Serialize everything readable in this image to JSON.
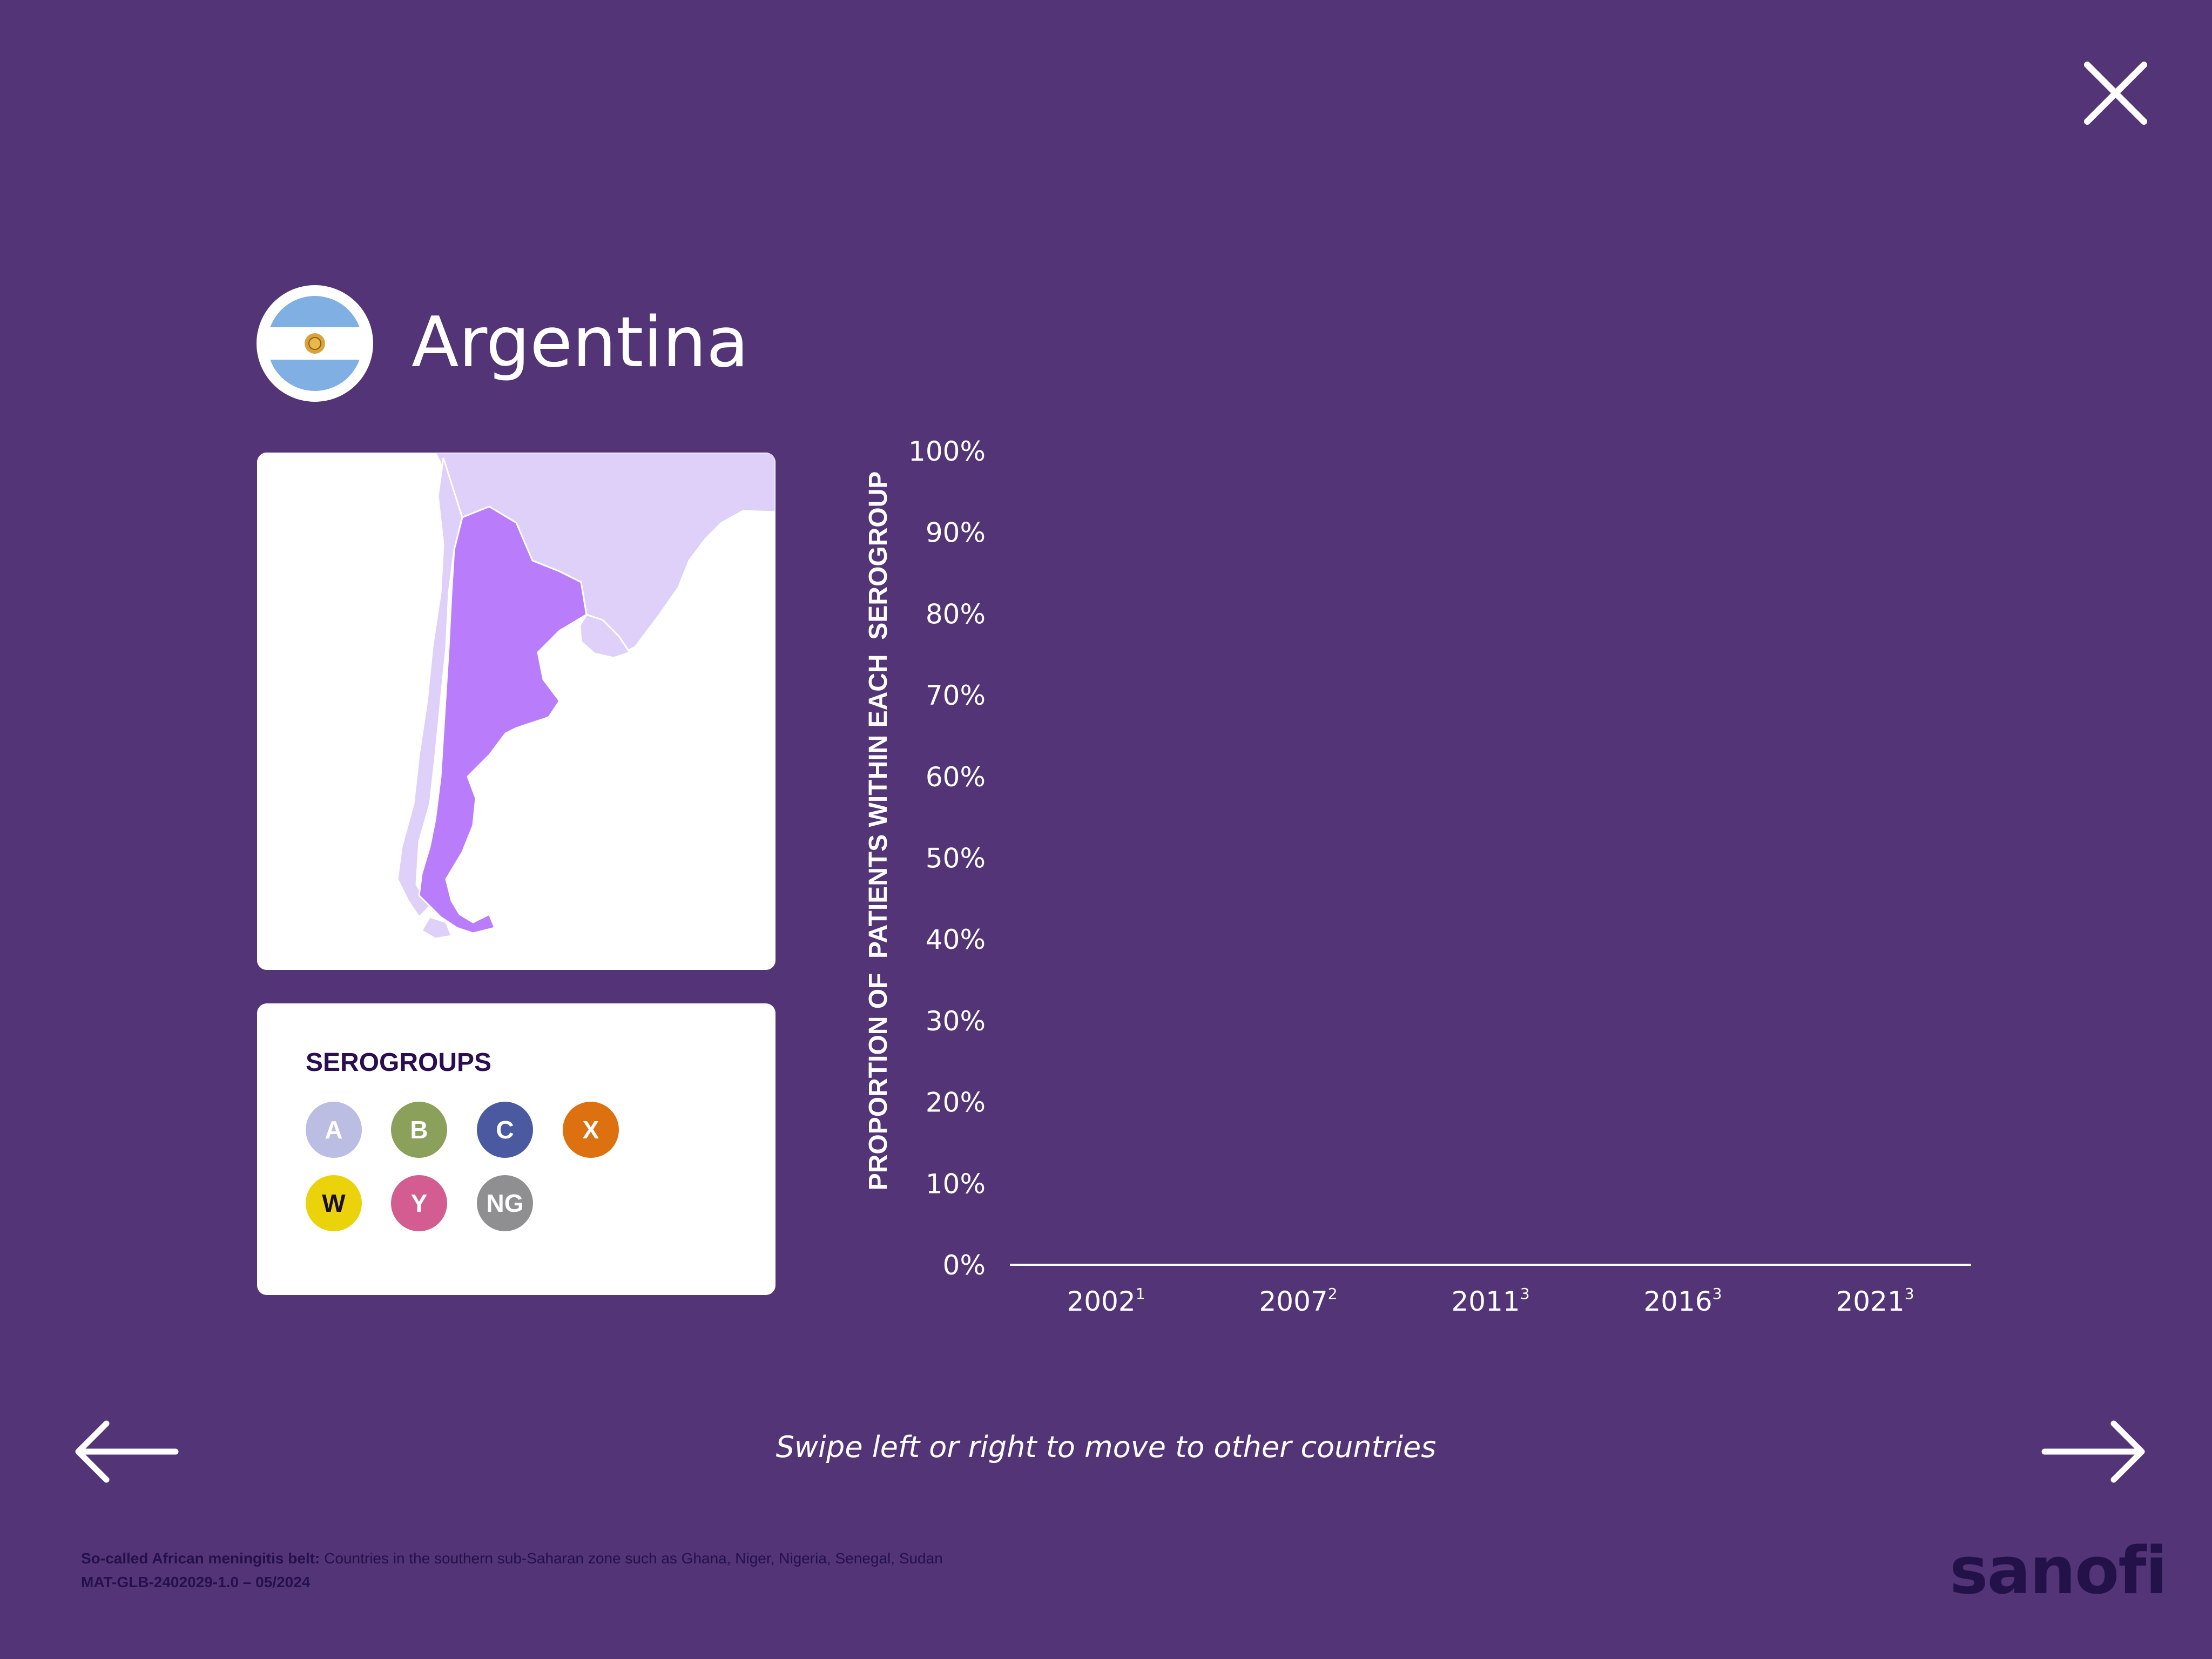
{
  "country": {
    "name": "Argentina",
    "flag_icon": "argentina-flag-icon"
  },
  "close_icon": "close-icon",
  "legend": {
    "title": "SEROGROUPS",
    "items": [
      {
        "label": "A",
        "color": "#bcbde3",
        "text_color": "#ffffff"
      },
      {
        "label": "B",
        "color": "#8ba05b",
        "text_color": "#ffffff"
      },
      {
        "label": "C",
        "color": "#4b5aa0",
        "text_color": "#ffffff"
      },
      {
        "label": "X",
        "color": "#dd7110",
        "text_color": "#ffffff"
      },
      {
        "label": "W",
        "color": "#ead30a",
        "text_color": "#1a0d33"
      },
      {
        "label": "Y",
        "color": "#d35d91",
        "text_color": "#ffffff"
      },
      {
        "label": "NG",
        "color": "#8f8f92",
        "text_color": "#ffffff"
      }
    ]
  },
  "chart_data": {
    "type": "bar",
    "ylabel": "PROPORTION OF  PATIENTS WITHIN EACH  SEROGROUP",
    "ylim": [
      0,
      100
    ],
    "y_ticks": [
      "100%",
      "90%",
      "80%",
      "70%",
      "60%",
      "50%",
      "40%",
      "30%",
      "20%",
      "10%",
      "0%"
    ],
    "categories": [
      {
        "year": "2002",
        "ref": "1"
      },
      {
        "year": "2007",
        "ref": "2"
      },
      {
        "year": "2011",
        "ref": "3"
      },
      {
        "year": "2016",
        "ref": "3"
      },
      {
        "year": "2021",
        "ref": "3"
      }
    ],
    "series": [],
    "grid": false
  },
  "navigation": {
    "hint": "Swipe left or right to move to other countries",
    "prev_icon": "arrow-left-icon",
    "next_icon": "arrow-right-icon"
  },
  "footer": {
    "note_label": "So-called African meningitis belt:",
    "note_text": " Countries in the southern sub-Saharan zone such as Ghana, Niger, Nigeria, Senegal, Sudan",
    "doc_code": "MAT-GLB-2402029-1.0 – 05/2024",
    "brand": "sanofi"
  }
}
